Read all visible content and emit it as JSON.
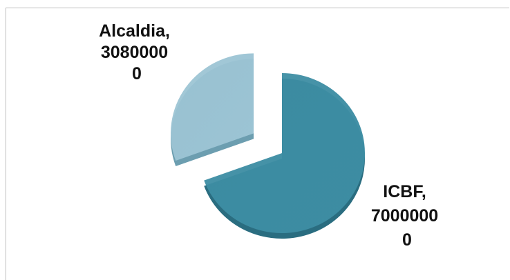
{
  "chart_data": {
    "type": "pie",
    "title": "",
    "slices": [
      {
        "name": "ICBF",
        "value": 70000000,
        "label_lines": [
          "ICBF,",
          "7000000",
          "0"
        ],
        "color": "#3d8da3",
        "side_color": "#2a6d80",
        "exploded": false
      },
      {
        "name": "Alcaldia",
        "value": 30800000,
        "label_lines": [
          "Alcaldia,",
          "3080000",
          "0"
        ],
        "color": "#9cc4d4",
        "side_color": "#6c9eb0",
        "exploded": true
      }
    ],
    "legend": "none",
    "style": "3d-exploded"
  }
}
